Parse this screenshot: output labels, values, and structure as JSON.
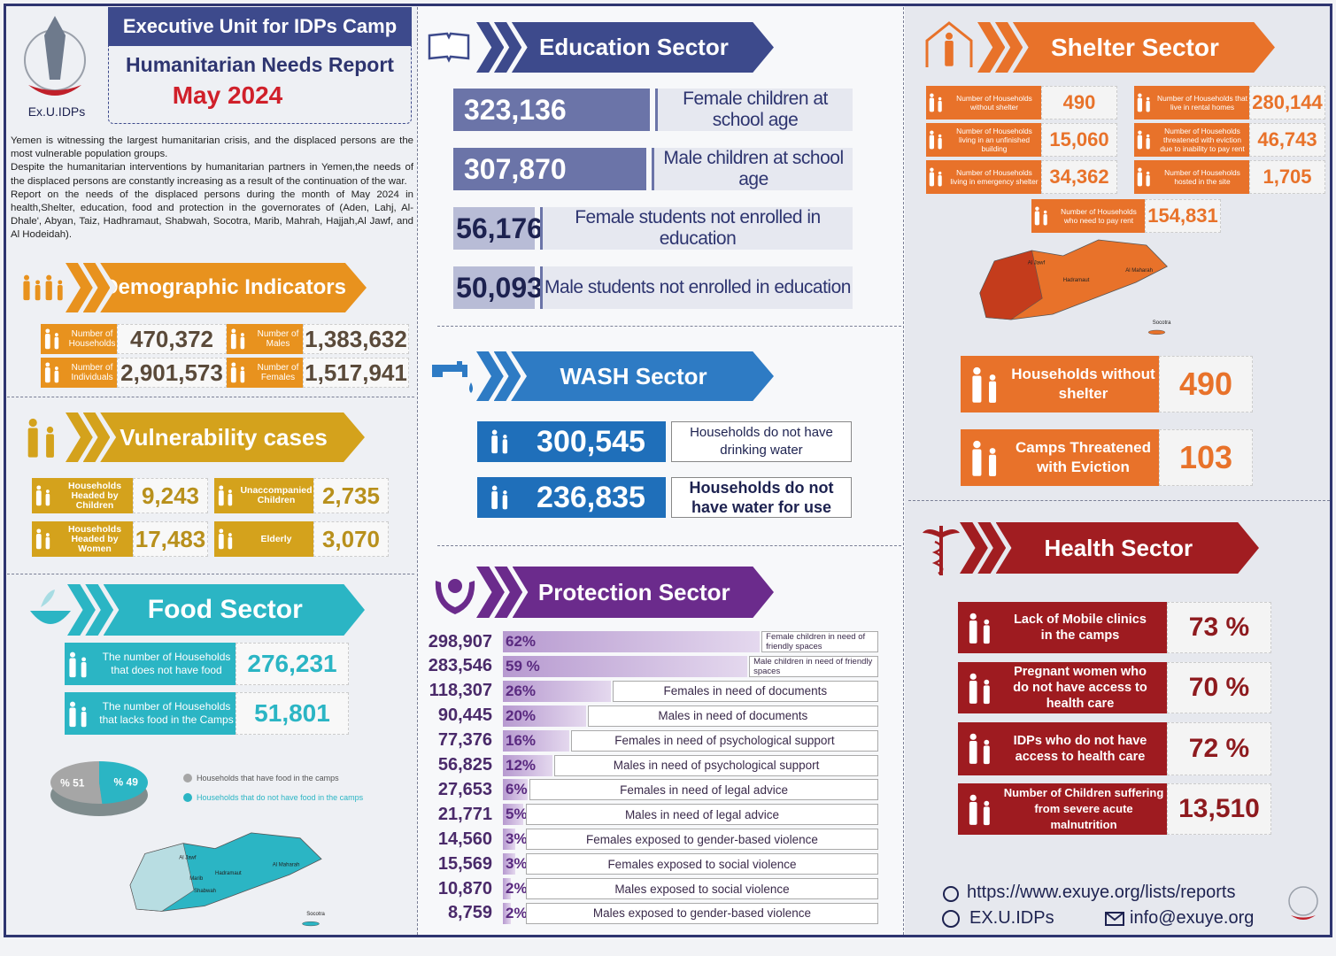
{
  "header": {
    "title": "Executive Unit for IDPs Camp",
    "subtitle": "Humanitarian Needs Report",
    "date": "May 2024",
    "logo_text": "Ex.U.IDPs"
  },
  "intro": [
    "Yemen is witnessing the largest humanitarian crisis, and the displaced persons are the most vulnerable population groups.",
    "Despite the humanitarian interventions by humanitarian partners in Yemen,the needs of the displaced persons are constantly increasing as a result of the continuation of the war.",
    "Report on the needs of the displaced persons during the month of May 2024 in health,Shelter, education, food and protection in the governorates of (Aden, Lahj, Al-Dhale', Abyan, Taiz, Hadhramaut, Shabwah, Socotra, Marib, Mahrah, Hajjah,Al Jawf, and Al Hodeidah)."
  ],
  "demographic": {
    "title": "Demographic Indicators",
    "items": [
      {
        "label": "Number of Households",
        "value": "470,372"
      },
      {
        "label": "Number of Males",
        "value": "1,383,632"
      },
      {
        "label": "Number of Individuals",
        "value": "2,901,573"
      },
      {
        "label": "Number of Females",
        "value": "1,517,941"
      }
    ]
  },
  "vulnerability": {
    "title": "Vulnerability cases",
    "items": [
      {
        "label": "Households Headed by Children",
        "value": "9,243"
      },
      {
        "label": "Unaccompanied Children",
        "value": "2,735"
      },
      {
        "label": "Households Headed by Women",
        "value": "17,483"
      },
      {
        "label": "Elderly",
        "value": "3,070"
      }
    ]
  },
  "food": {
    "title": "Food Sector",
    "items": [
      {
        "label": "The number of Households that does not have food",
        "value": "276,231"
      },
      {
        "label": "The number of Households that lacks food in the Camps",
        "value": "51,801"
      }
    ],
    "map_labels": [
      "Al Jawf",
      "Hadramaut",
      "Al Maharah",
      "Marib",
      "Shabwah",
      "Socotra"
    ]
  },
  "education": {
    "title": "Education Sector",
    "items": [
      {
        "value": "323,136",
        "label": "Female children at school age"
      },
      {
        "value": "307,870",
        "label": "Male children at school age"
      },
      {
        "value": "56,176",
        "label": "Female students not enrolled in education"
      },
      {
        "value": "50,093",
        "label": "Male students not enrolled in education"
      }
    ]
  },
  "wash": {
    "title": "WASH Sector",
    "items": [
      {
        "value": "300,545",
        "label": "Households do not have drinking water"
      },
      {
        "value": "236,835",
        "label": "Households do not have water for use"
      }
    ]
  },
  "shelter": {
    "title": "Shelter Sector",
    "items": [
      {
        "label": "Number of Households without shelter",
        "value": "490"
      },
      {
        "label": "Number of Households living in an unfinished building",
        "value": "15,060"
      },
      {
        "label": "Number of Households living in emergency shelter",
        "value": "34,362"
      },
      {
        "label": "Number of Households that live in rental homes",
        "value": "280,144"
      },
      {
        "label": "Number of Households threatened with eviction due to inability to pay rent",
        "value": "46,743"
      },
      {
        "label": "Number of Households hosted in the site",
        "value": "1,705"
      },
      {
        "label": "Number of Households who need to pay rent",
        "value": "154,831"
      }
    ],
    "highlights": [
      {
        "label": "Households without shelter",
        "value": "490"
      },
      {
        "label": "Camps Threatened with Eviction",
        "value": "103"
      }
    ],
    "map_labels": [
      "Al Jawf",
      "Hadramaut",
      "Al Maharah",
      "Socotra"
    ]
  },
  "health": {
    "title": "Health Sector",
    "items": [
      {
        "label": "Lack of Mobile clinics in the camps",
        "value": "73 %"
      },
      {
        "label": "Pregnant women who do not have access to health care",
        "value": "70 %"
      },
      {
        "label": "IDPs who do not have access to health care",
        "value": "72 %"
      },
      {
        "label": "Number of Children suffering from severe acute malnutrition",
        "value": "13,510"
      }
    ]
  },
  "footer": {
    "url": "https://www.exuye.org/lists/reports",
    "org": "EX.U.IDPs",
    "email": "info@exuye.org"
  },
  "chart_data": [
    {
      "type": "pie",
      "categories": [
        "Households that have food in the camps",
        "Households that do not have food in the camps"
      ],
      "values": [
        51,
        49
      ],
      "value_labels": [
        "% 51",
        "% 49"
      ],
      "colors": [
        "#a6a6a6",
        "#2bb5c4"
      ]
    },
    {
      "type": "bar",
      "title": "Protection Sector",
      "color": "#b79ad0",
      "categories": [
        "Female children in need of friendly spaces",
        "Male children in need of friendly spaces",
        "Females in need of documents",
        "Males in need of documents",
        "Females in need of psychological support",
        "Males in need of psychological support",
        "Females in need of legal advice",
        "Males in need of legal advice",
        "Females exposed to gender-based violence",
        "Females exposed to social violence",
        "Males exposed to social violence",
        "Males exposed to gender-based violence"
      ],
      "counts": [
        "298,907",
        "283,546",
        "118,307",
        "90,445",
        "77,376",
        "56,825",
        "27,653",
        "21,771",
        "14,560",
        "15,569",
        "10,870",
        "8,759"
      ],
      "values": [
        62,
        59,
        26,
        20,
        16,
        12,
        6,
        5,
        3,
        3,
        2,
        2
      ],
      "value_labels": [
        "62%",
        "59 %",
        "26%",
        "20%",
        "16%",
        "12%",
        "6%",
        "5%",
        "3%",
        "3%",
        "2%",
        "2%"
      ]
    }
  ]
}
